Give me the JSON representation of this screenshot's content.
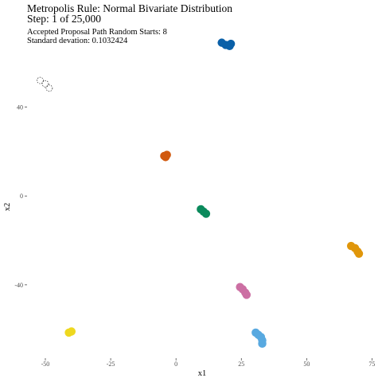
{
  "header": {
    "title": "Metropolis Rule: Normal Bivariate Distribution",
    "step": "Step: 1 of 25,000",
    "subtitle_1": "Accepted Proposal Path Random Starts: 8",
    "subtitle_2": "Standard devation: 0.1032424"
  },
  "chart_data": {
    "type": "scatter",
    "title": "Metropolis Rule: Normal Bivariate Distribution",
    "xlabel": "x1",
    "ylabel": "x2",
    "xlim": [
      -57,
      77
    ],
    "ylim": [
      -73,
      66
    ],
    "x_ticks": [
      -50,
      -25,
      0,
      25,
      50,
      75
    ],
    "y_ticks": [
      -40,
      0,
      40
    ],
    "grid": false,
    "legend": "none",
    "series": [
      {
        "color": "#000000",
        "hollow": true,
        "points": [
          [
            -52,
            52
          ],
          [
            -50,
            50.5
          ],
          [
            -48.5,
            48.5
          ]
        ]
      },
      {
        "color": "#0A60A8",
        "points": [
          [
            17.5,
            69
          ],
          [
            19,
            68
          ],
          [
            20.5,
            67.5
          ],
          [
            21,
            68.5
          ]
        ]
      },
      {
        "color": "#D1590E",
        "points": [
          [
            -4.5,
            18
          ],
          [
            -3.5,
            18.5
          ],
          [
            -4,
            17.5
          ]
        ]
      },
      {
        "color": "#0B8A5C",
        "points": [
          [
            9.5,
            -6
          ],
          [
            10.5,
            -7
          ],
          [
            11.5,
            -8
          ]
        ]
      },
      {
        "color": "#E0960A",
        "points": [
          [
            67,
            -22.5
          ],
          [
            68.5,
            -23.5
          ],
          [
            69.5,
            -25
          ],
          [
            70,
            -26
          ]
        ]
      },
      {
        "color": "#CC6FA3",
        "points": [
          [
            24.5,
            -41
          ],
          [
            25.5,
            -42
          ],
          [
            26.5,
            -43.5
          ],
          [
            27,
            -44.5
          ]
        ]
      },
      {
        "color": "#58A9E0",
        "points": [
          [
            30.5,
            -61.5
          ],
          [
            31.5,
            -62.5
          ],
          [
            32.5,
            -63.5
          ],
          [
            33,
            -65
          ],
          [
            33,
            -66.5
          ]
        ]
      },
      {
        "color": "#EED81F",
        "points": [
          [
            -41,
            -61.5
          ],
          [
            -40,
            -61
          ]
        ]
      }
    ]
  }
}
